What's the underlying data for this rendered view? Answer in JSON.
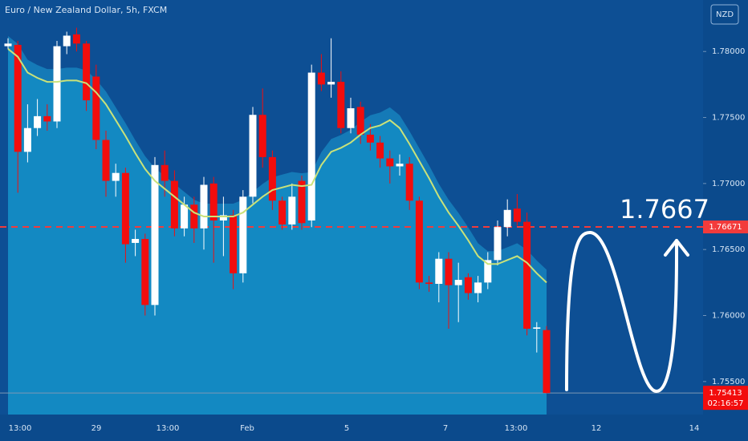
{
  "chart_data": {
    "type": "candlestick",
    "title": "Euro / New Zealand Dollar, 5h, FXCM",
    "currency": "NZD",
    "ylim": [
      1.7525,
      1.7839
    ],
    "yticks": [
      {
        "value": 1.755,
        "label": "1.75500"
      },
      {
        "value": 1.76,
        "label": "1.76000"
      },
      {
        "value": 1.765,
        "label": "1.76500"
      },
      {
        "value": 1.77,
        "label": "1.77000"
      },
      {
        "value": 1.775,
        "label": "1.77500"
      },
      {
        "value": 1.78,
        "label": "1.78000"
      }
    ],
    "xticks": [
      "13:00",
      "29",
      "13:00",
      "Feb",
      "5",
      "7",
      "13:00",
      "12",
      "14"
    ],
    "up_color": "#ffffff",
    "down_color": "#f20d0d",
    "open": [
      1.7804,
      1.7805,
      1.7724,
      1.7742,
      1.7751,
      1.7747,
      1.7804,
      1.7813,
      1.7806,
      1.7781,
      1.7733,
      1.7702,
      1.7708,
      1.7655,
      1.7658,
      1.7608,
      1.7714,
      1.7702,
      1.7666,
      1.7684,
      1.7666,
      1.77,
      1.7672,
      1.7676,
      1.7632,
      1.769,
      1.7752,
      1.772,
      1.7687,
      1.7669,
      1.7702,
      1.7672,
      1.7784,
      1.7775,
      1.7777,
      1.7742,
      1.7758,
      1.7737,
      1.7731,
      1.7719,
      1.7713,
      1.7715,
      1.7687,
      1.7625,
      1.7624,
      1.7643,
      1.7623,
      1.7629,
      1.7617,
      1.7625,
      1.7642,
      1.7667,
      1.7681,
      1.7671,
      1.759,
      1.7589
    ],
    "high": [
      1.781,
      1.7808,
      1.776,
      1.7764,
      1.776,
      1.7808,
      1.7815,
      1.7818,
      1.7808,
      1.779,
      1.774,
      1.7715,
      1.7712,
      1.7665,
      1.7662,
      1.772,
      1.7725,
      1.771,
      1.769,
      1.769,
      1.7705,
      1.7705,
      1.769,
      1.768,
      1.7695,
      1.7758,
      1.7772,
      1.7725,
      1.769,
      1.77,
      1.7706,
      1.779,
      1.7798,
      1.781,
      1.7785,
      1.7765,
      1.7762,
      1.7745,
      1.7736,
      1.7725,
      1.7722,
      1.772,
      1.769,
      1.763,
      1.7648,
      1.7648,
      1.764,
      1.7632,
      1.763,
      1.7648,
      1.7672,
      1.7688,
      1.7692,
      1.7678,
      1.7595,
      1.7592
    ],
    "low": [
      1.7802,
      1.7693,
      1.7716,
      1.7736,
      1.774,
      1.7742,
      1.7798,
      1.78,
      1.7755,
      1.7726,
      1.769,
      1.769,
      1.764,
      1.7645,
      1.76,
      1.76,
      1.769,
      1.766,
      1.766,
      1.7655,
      1.765,
      1.764,
      1.7645,
      1.762,
      1.7625,
      1.7685,
      1.7712,
      1.768,
      1.7665,
      1.7665,
      1.7665,
      1.7667,
      1.777,
      1.7765,
      1.7738,
      1.7738,
      1.773,
      1.7725,
      1.7712,
      1.77,
      1.7706,
      1.768,
      1.762,
      1.7618,
      1.761,
      1.759,
      1.7595,
      1.7612,
      1.761,
      1.762,
      1.7638,
      1.766,
      1.7668,
      1.7585,
      1.7572,
      1.7541
    ],
    "close": [
      1.7806,
      1.7724,
      1.7742,
      1.7751,
      1.7747,
      1.7804,
      1.7812,
      1.7806,
      1.7763,
      1.7733,
      1.7702,
      1.7708,
      1.7654,
      1.7658,
      1.7608,
      1.7714,
      1.7702,
      1.7666,
      1.7684,
      1.7666,
      1.7699,
      1.7672,
      1.7676,
      1.7632,
      1.769,
      1.7752,
      1.772,
      1.7687,
      1.7669,
      1.769,
      1.767,
      1.7784,
      1.7775,
      1.7777,
      1.7742,
      1.7757,
      1.7737,
      1.7731,
      1.7719,
      1.7713,
      1.7715,
      1.7687,
      1.7625,
      1.7624,
      1.7643,
      1.7623,
      1.7627,
      1.7617,
      1.7625,
      1.7642,
      1.7667,
      1.768,
      1.7671,
      1.759,
      1.7591,
      1.75413
    ],
    "ma": {
      "color": "#c9e27a",
      "values": [
        1.7802,
        1.7796,
        1.7784,
        1.778,
        1.7777,
        1.7777,
        1.7778,
        1.7778,
        1.7776,
        1.7769,
        1.776,
        1.7748,
        1.7736,
        1.7723,
        1.7711,
        1.7702,
        1.7696,
        1.769,
        1.7684,
        1.7678,
        1.7675,
        1.7675,
        1.7675,
        1.7675,
        1.7678,
        1.7684,
        1.769,
        1.7695,
        1.7697,
        1.7699,
        1.7698,
        1.7699,
        1.7714,
        1.7724,
        1.7727,
        1.7731,
        1.7737,
        1.7742,
        1.7744,
        1.7748,
        1.7742,
        1.773,
        1.7717,
        1.7704,
        1.769,
        1.7678,
        1.7668,
        1.7657,
        1.7645,
        1.7639,
        1.7639,
        1.7642,
        1.7645,
        1.764,
        1.7632,
        1.7625
      ]
    },
    "level": {
      "value": 1.76671,
      "annotation": "1.7667",
      "color": "#f23b3b"
    },
    "last_price": 1.75413,
    "countdown": "02:16:57"
  }
}
